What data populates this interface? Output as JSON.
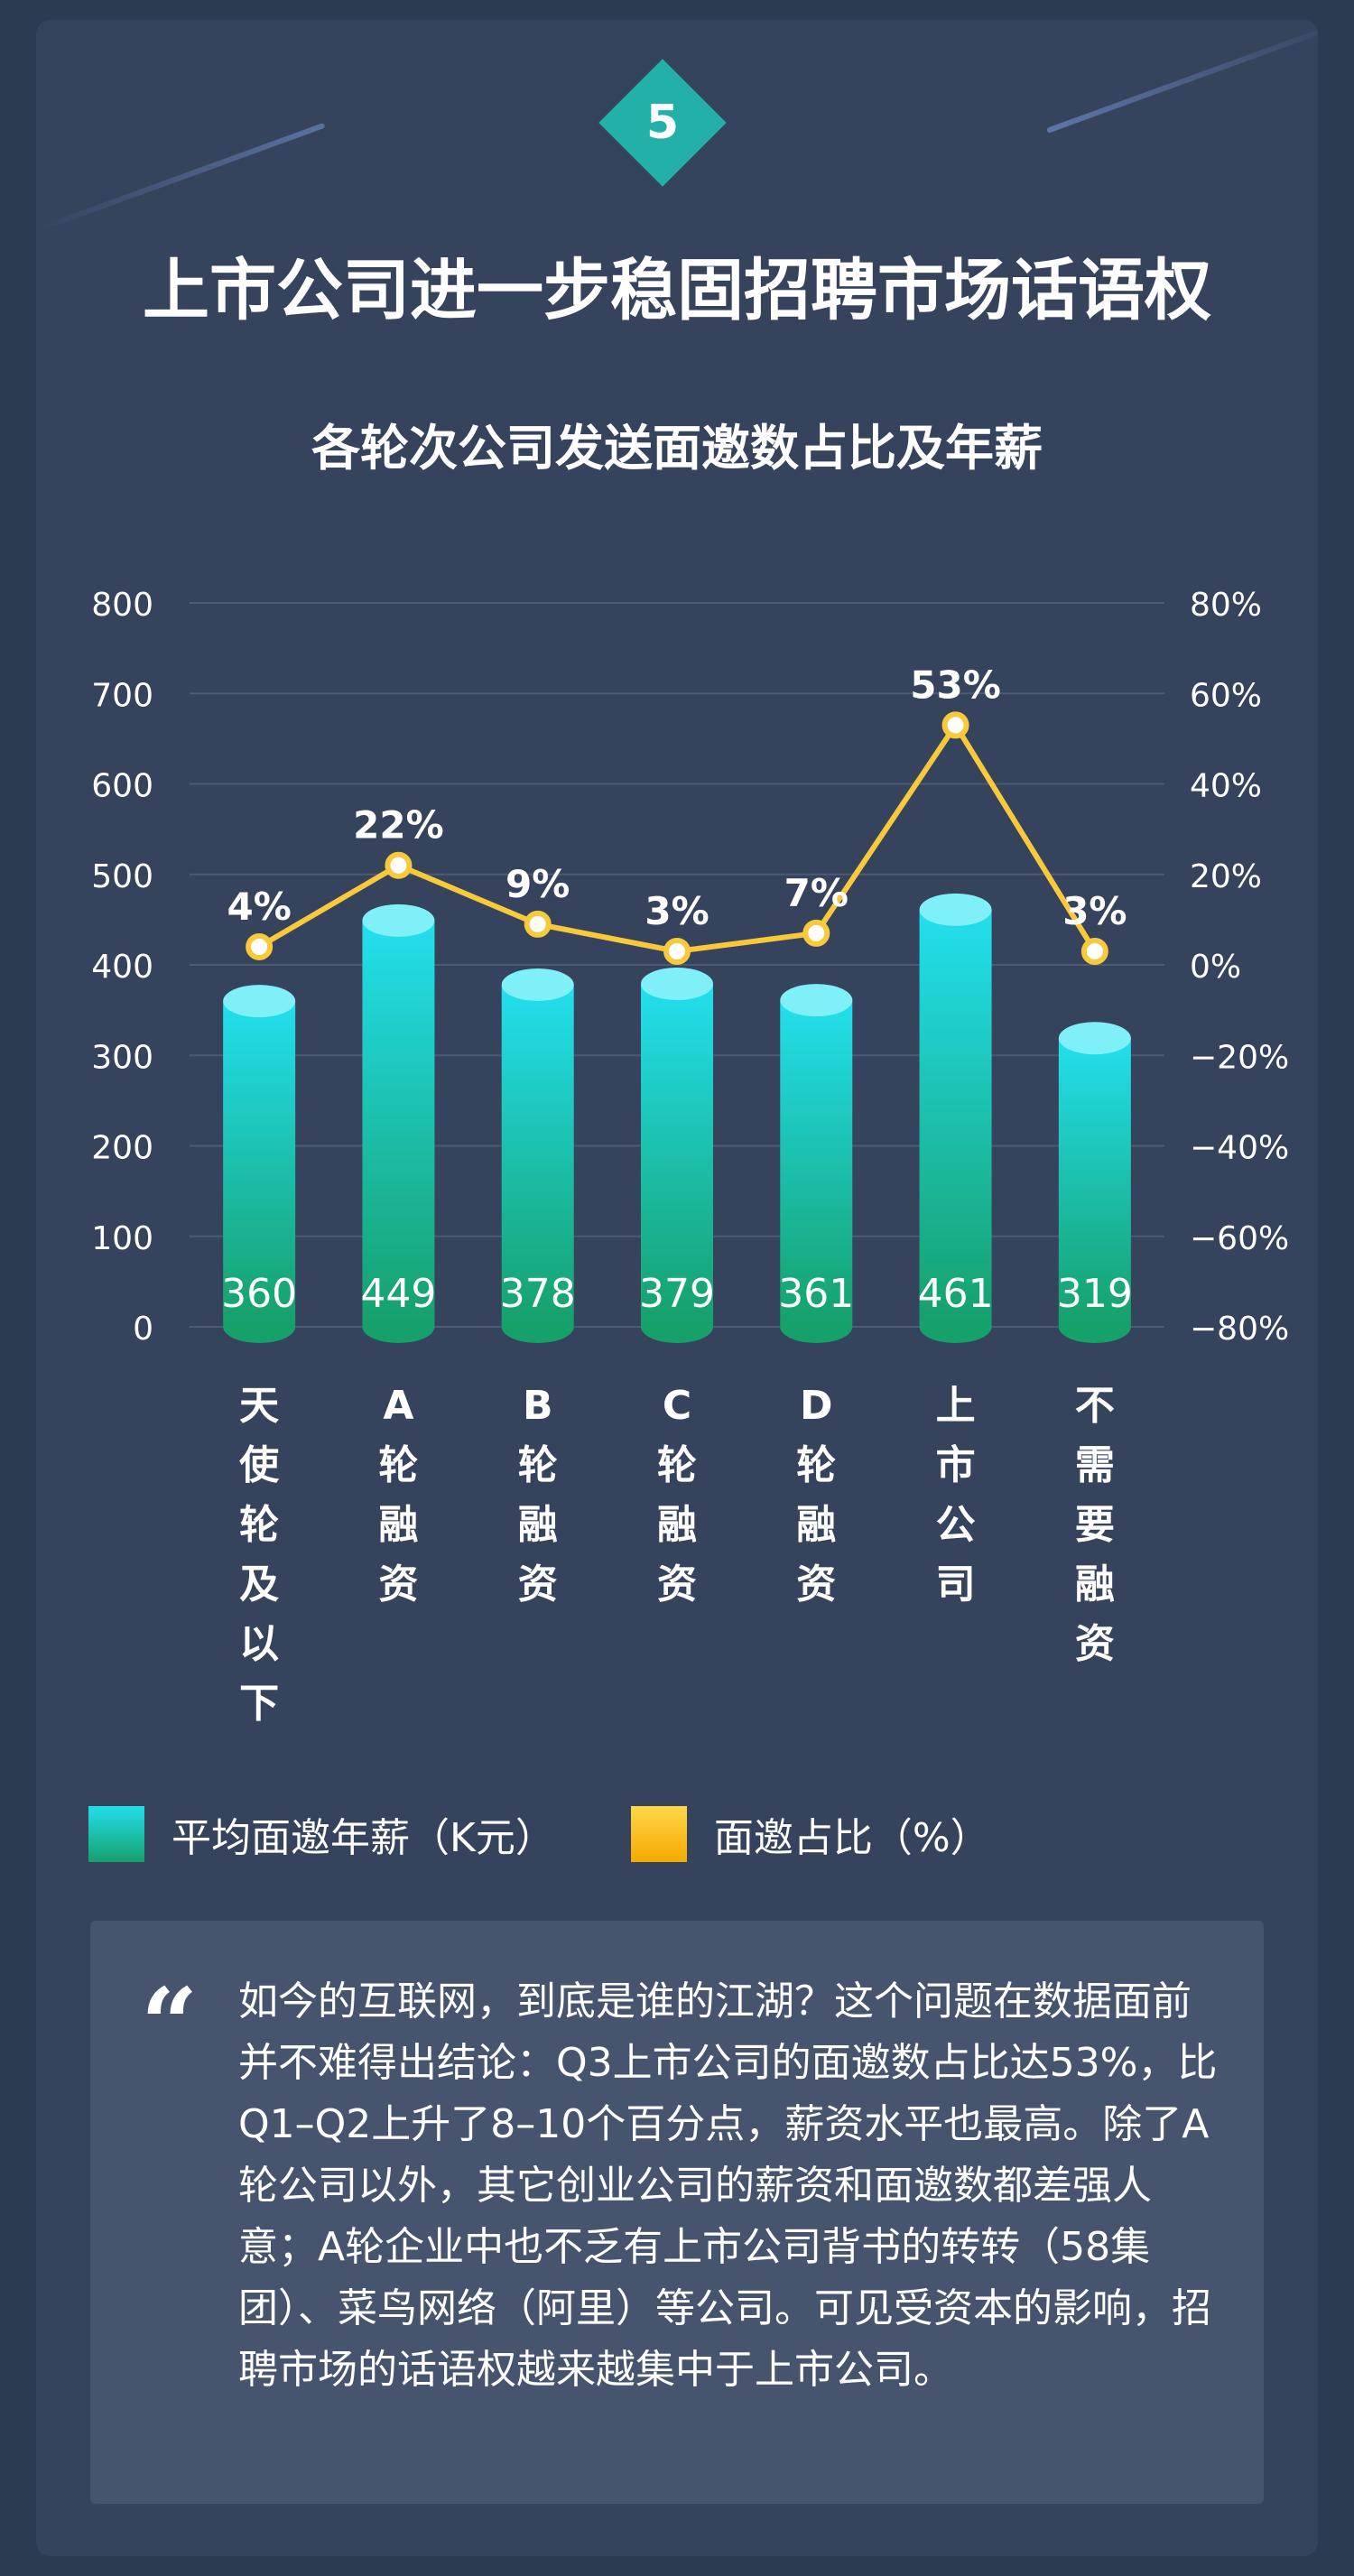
{
  "badge": {
    "number": "5"
  },
  "header": {
    "title": "上市公司进一步稳固招聘市场话语权"
  },
  "chart_data": {
    "type": "bar",
    "title": "各轮次公司发送面邀数占比及年薪",
    "categories": [
      "天使轮及以下",
      "A轮融资",
      "B轮融资",
      "C轮融资",
      "D轮融资",
      "上市公司",
      "不需要融资"
    ],
    "series": [
      {
        "name": "平均面邀年薪（K元）",
        "type": "bar",
        "axis": "left",
        "values": [
          360,
          449,
          378,
          379,
          361,
          461,
          319
        ],
        "value_labels": [
          "360",
          "449",
          "378",
          "379",
          "361",
          "461",
          "319"
        ]
      },
      {
        "name": "面邀占比（%）",
        "type": "line",
        "axis": "right",
        "values": [
          4,
          22,
          9,
          3,
          7,
          53,
          3
        ],
        "value_labels": [
          "4%",
          "22%",
          "9%",
          "3%",
          "7%",
          "53%",
          "3%"
        ]
      }
    ],
    "y_left": {
      "range": [
        0,
        800
      ],
      "ticks": [
        "0",
        "100",
        "200",
        "300",
        "400",
        "500",
        "600",
        "700",
        "800"
      ]
    },
    "y_right": {
      "range": [
        -80,
        80
      ],
      "ticks": [
        "−80%",
        "−60%",
        "−40%",
        "−20%",
        "0%",
        "20%",
        "40%",
        "60%",
        "80%"
      ]
    },
    "grid": true,
    "legend": "bottom",
    "colors": {
      "bar_top": "#22dfee",
      "bar_bottom": "#16a06a",
      "line": "#f8c93a",
      "point_center": "#ffffff"
    }
  },
  "legend": {
    "items": [
      {
        "label": "平均面邀年薪（K元）",
        "color": "#22c8c8"
      },
      {
        "label": "面邀占比（%）",
        "color": "#ffc23a"
      }
    ]
  },
  "quote": {
    "mark": "“",
    "text": "如今的互联网，到底是谁的江湖？这个问题在数据面前并不难得出结论：Q3上市公司的面邀数占比达53%，比Q1–Q2上升了8–10个百分点，薪资水平也最高。除了A轮公司以外，其它创业公司的薪资和面邀数都差强人意；A轮企业中也不乏有上市公司背书的转转（58集团）、菜鸟网络（阿里）等公司。可见受资本的影响，招聘市场的话语权越来越集中于上市公司。"
  }
}
